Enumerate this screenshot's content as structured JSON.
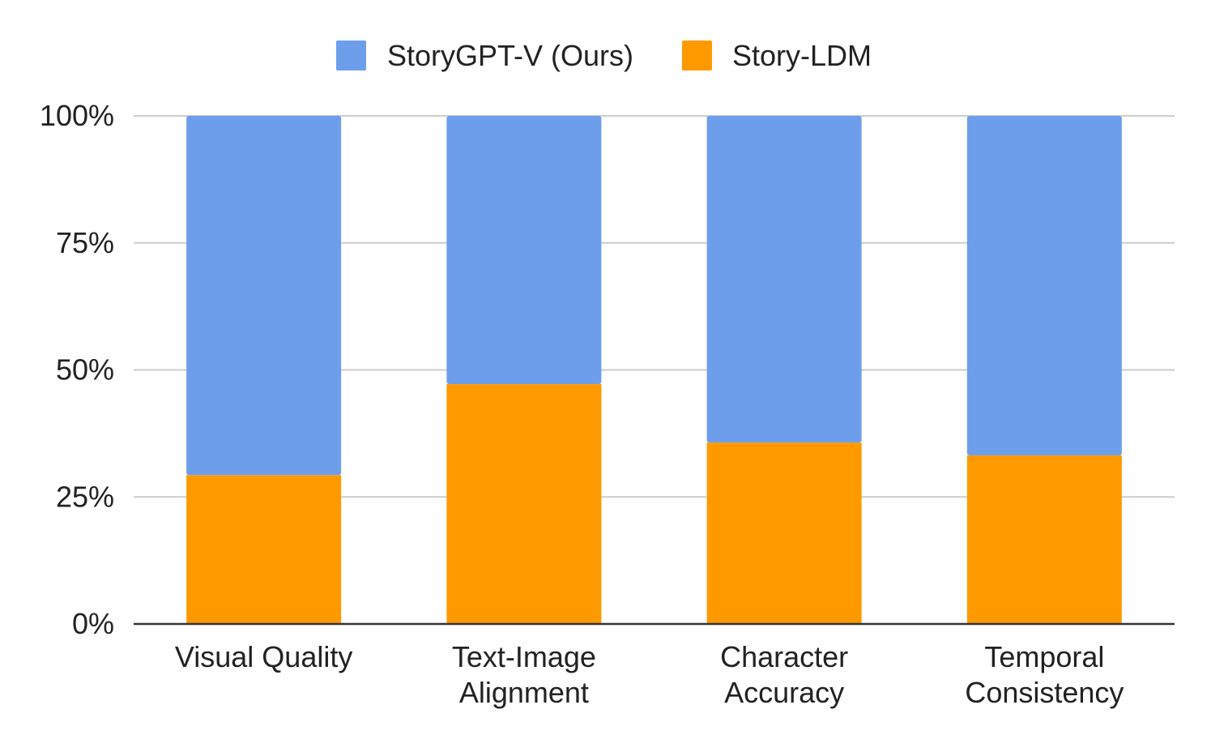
{
  "chart_data": {
    "type": "bar",
    "stacked": true,
    "title": "",
    "xlabel": "",
    "ylabel": "",
    "categories": [
      [
        "Visual Quality"
      ],
      [
        "Text-Image",
        "Alignment"
      ],
      [
        "Character",
        "Accuracy"
      ],
      [
        "Temporal",
        "Consistency"
      ]
    ],
    "series": [
      {
        "name": "Story-LDM",
        "color": "#ff9900",
        "values": [
          29.3,
          47.2,
          35.7,
          33.2
        ]
      },
      {
        "name": "StoryGPT-V (Ours)",
        "color": "#6d9eeb",
        "values": [
          70.7,
          52.8,
          64.3,
          66.8
        ]
      }
    ],
    "legend_order": [
      "StoryGPT-V (Ours)",
      "Story-LDM"
    ],
    "ylim": [
      0,
      100
    ],
    "y_ticks": [
      {
        "value": 0,
        "label": "0%"
      },
      {
        "value": 25,
        "label": "25%"
      },
      {
        "value": 50,
        "label": "50%"
      },
      {
        "value": 75,
        "label": "75%"
      },
      {
        "value": 100,
        "label": "100%"
      }
    ],
    "grid": true,
    "legend_position": "top-center"
  }
}
